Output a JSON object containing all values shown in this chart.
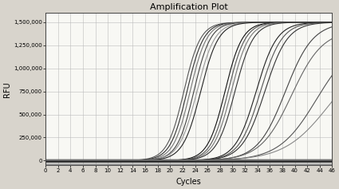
{
  "title": "Amplification Plot",
  "xlabel": "Cycles",
  "ylabel": "RFU",
  "xlim": [
    0,
    46
  ],
  "ylim": [
    -50000,
    1600000
  ],
  "xticks": [
    0,
    2,
    4,
    6,
    8,
    10,
    12,
    14,
    16,
    18,
    20,
    22,
    24,
    26,
    28,
    30,
    32,
    34,
    36,
    38,
    40,
    42,
    44,
    46
  ],
  "yticks": [
    0,
    250000,
    500000,
    750000,
    1000000,
    1250000,
    1500000
  ],
  "background_color": "#d8d4cc",
  "plot_bg_color": "#f8f8f4",
  "grid_color": "#bbbbbb",
  "curves": [
    {
      "ct": 22.2,
      "L": 1500000,
      "k": 0.75,
      "color": "#555555",
      "lw": 0.8
    },
    {
      "ct": 22.7,
      "L": 1500000,
      "k": 0.75,
      "color": "#333333",
      "lw": 0.8
    },
    {
      "ct": 23.2,
      "L": 1500000,
      "k": 0.75,
      "color": "#777777",
      "lw": 0.8
    },
    {
      "ct": 23.8,
      "L": 1500000,
      "k": 0.75,
      "color": "#444444",
      "lw": 0.8
    },
    {
      "ct": 24.3,
      "L": 1500000,
      "k": 0.7,
      "color": "#999999",
      "lw": 0.8
    },
    {
      "ct": 24.9,
      "L": 1500000,
      "k": 0.7,
      "color": "#222222",
      "lw": 0.8
    },
    {
      "ct": 28.8,
      "L": 1500000,
      "k": 0.72,
      "color": "#111111",
      "lw": 0.8
    },
    {
      "ct": 29.3,
      "L": 1500000,
      "k": 0.72,
      "color": "#555555",
      "lw": 0.8
    },
    {
      "ct": 29.8,
      "L": 1500000,
      "k": 0.7,
      "color": "#777777",
      "lw": 0.8
    },
    {
      "ct": 30.4,
      "L": 1500000,
      "k": 0.68,
      "color": "#333333",
      "lw": 0.8
    },
    {
      "ct": 33.8,
      "L": 1500000,
      "k": 0.6,
      "color": "#222222",
      "lw": 0.8
    },
    {
      "ct": 34.5,
      "L": 1500000,
      "k": 0.58,
      "color": "#555555",
      "lw": 0.8
    },
    {
      "ct": 35.2,
      "L": 1500000,
      "k": 0.55,
      "color": "#333333",
      "lw": 0.8
    },
    {
      "ct": 38.5,
      "L": 1500000,
      "k": 0.45,
      "color": "#444444",
      "lw": 0.8
    },
    {
      "ct": 39.5,
      "L": 1420000,
      "k": 0.4,
      "color": "#666666",
      "lw": 0.8
    },
    {
      "ct": 43.5,
      "L": 1330000,
      "k": 0.33,
      "color": "#555555",
      "lw": 0.8
    },
    {
      "ct": 45.5,
      "L": 1200000,
      "k": 0.28,
      "color": "#888888",
      "lw": 0.8
    }
  ],
  "baseline_thick": [
    {
      "y": 0,
      "color": "#111111",
      "lw": 2.5
    },
    {
      "y": -8000,
      "color": "#111111",
      "lw": 2.0
    },
    {
      "y": -18000,
      "color": "#333333",
      "lw": 1.2
    }
  ],
  "baseline_thin": [
    {
      "y": 5000,
      "color": "#666666",
      "lw": 0.6
    },
    {
      "y": 10000,
      "color": "#888888",
      "lw": 0.6
    },
    {
      "y": -28000,
      "color": "#777777",
      "lw": 0.6
    },
    {
      "y": -38000,
      "color": "#999999",
      "lw": 0.6
    }
  ]
}
